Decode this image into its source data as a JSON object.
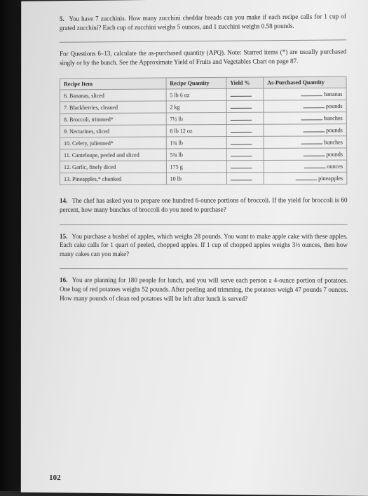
{
  "page_number": "102",
  "question5": {
    "num": "5.",
    "text": "You have 7 zucchinis. How many zucchini cheddar breads can you make if each recipe calls for 1 cup of grated zucchini? Each cup of zucchini weighs 5 ounces, and 1 zucchini weighs 0.58 pounds."
  },
  "section_note": "For Questions 6–13, calculate the as-purchased quantity (APQ). Note: Starred items (*) are usually purchased singly or by the bunch. See the Approximate Yield of Fruits and Vegetables Chart on page 87.",
  "table": {
    "headers": [
      "Recipe Item",
      "Recipe Quantity",
      "Yield %",
      "As-Purchased Quantity"
    ],
    "rows": [
      {
        "item": "6. Bananas, sliced",
        "qty": "5 lb 6 oz",
        "unit": "bananas"
      },
      {
        "item": "7. Blackberries, cleaned",
        "qty": "2 kg",
        "unit": "pounds"
      },
      {
        "item": "8. Broccoli, trimmed*",
        "qty": "7½ lb",
        "unit": "bunches"
      },
      {
        "item": "9. Nectarines, sliced",
        "qty": "6 lb 12 oz",
        "unit": "pounds"
      },
      {
        "item": "10. Celery, julienned*",
        "qty": "1¾ lb",
        "unit": "bunches"
      },
      {
        "item": "11. Canteloupe, peeled and sliced",
        "qty": "5¾ lb",
        "unit": "pounds"
      },
      {
        "item": "12. Garlic, finely diced",
        "qty": "175 g",
        "unit": "ounces"
      },
      {
        "item": "13. Pineapples,* chunked",
        "qty": "10 lb",
        "unit": "pineapples"
      }
    ]
  },
  "question14": {
    "num": "14.",
    "text": "The chef has asked you to prepare one hundred 6-ounce portions of broccoli. If the yield for broccoli is 60 percent, how many bunches of broccoli do you need to purchase?"
  },
  "question15": {
    "num": "15.",
    "text": "You purchase a bushel of apples, which weighs 28 pounds. You want to make apple cake with these apples. Each cake calls for 1 quart of peeled, chopped apples. If 1 cup of chopped apples weighs 3½ ounces, then how many cakes can you make?"
  },
  "question16": {
    "num": "16.",
    "text": "You are planning for 180 people for lunch, and you will serve each person a 4-ounce portion of potatoes. One bag of red potatoes weighs 52 pounds. After peeling and trimming, the potatoes weigh 47 pounds 7 ounces. How many pounds of clean red potatoes will be left after lunch is served?"
  },
  "colors": {
    "page_bg": "#e8e8e8",
    "text": "#2a2a2a",
    "border": "#999999",
    "header_bg": "#e0e0e0"
  }
}
